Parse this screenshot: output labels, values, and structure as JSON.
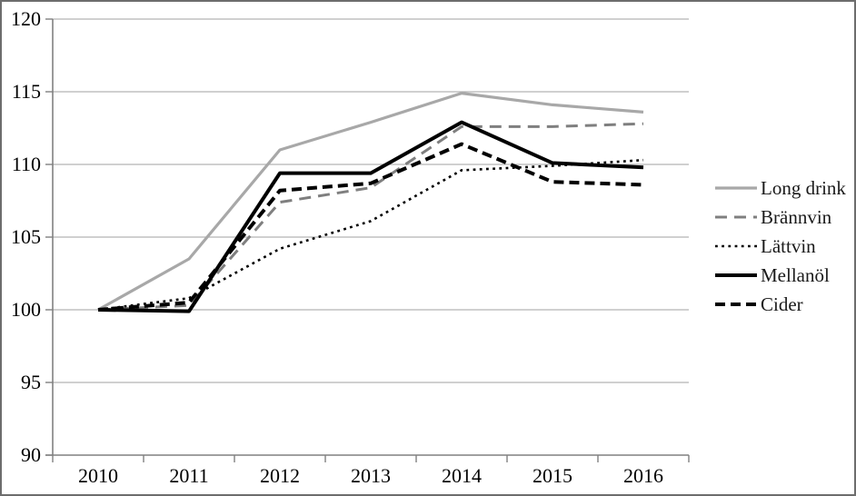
{
  "chart_data": {
    "type": "line",
    "title": "",
    "categories": [
      "2010",
      "2011",
      "2012",
      "2013",
      "2014",
      "2015",
      "2016"
    ],
    "series": [
      {
        "name": "Long drink",
        "color": "#a8a8a8",
        "style": "solid",
        "width": 3.2,
        "values": [
          100,
          103.5,
          111.0,
          112.9,
          114.9,
          114.1,
          113.6
        ]
      },
      {
        "name": "Brännvin",
        "color": "#7f7f7f",
        "style": "long-dash",
        "width": 3.0,
        "values": [
          100,
          100.3,
          107.4,
          108.4,
          112.6,
          112.6,
          112.8
        ]
      },
      {
        "name": "Lättvin",
        "color": "#000000",
        "style": "dot",
        "width": 2.6,
        "values": [
          100,
          100.8,
          104.2,
          106.1,
          109.6,
          109.9,
          110.3
        ]
      },
      {
        "name": "Mellanöl",
        "color": "#000000",
        "style": "solid",
        "width": 4.0,
        "values": [
          100,
          99.9,
          109.4,
          109.4,
          112.9,
          110.1,
          109.8
        ]
      },
      {
        "name": "Cider",
        "color": "#000000",
        "style": "dash",
        "width": 4.0,
        "values": [
          100,
          100.5,
          108.2,
          108.7,
          111.4,
          108.8,
          108.6
        ]
      }
    ],
    "xlabel": "",
    "ylabel": "",
    "ylim": [
      90,
      120
    ],
    "yticks": [
      90,
      95,
      100,
      105,
      110,
      115,
      120
    ],
    "grid": "horizontal",
    "legend_position": "right",
    "axis_color": "#808080",
    "grid_color": "#b3b3b3",
    "tick_label_color": "#000000",
    "background_color": "#ffffff",
    "border_color": "#6d6d6d"
  }
}
